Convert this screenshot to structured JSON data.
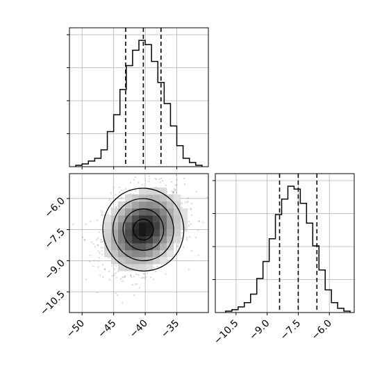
{
  "chart_data": [
    {
      "panel": "marginal-x",
      "type": "histogram",
      "xlim": [
        -52,
        -30
      ],
      "bin_edges": [
        -51,
        -50,
        -49,
        -48,
        -47,
        -46,
        -45,
        -44,
        -43,
        -42,
        -41,
        -40,
        -39,
        -38,
        -37,
        -36,
        -35,
        -34,
        -33,
        -32,
        -31
      ],
      "counts": [
        0.01,
        0.02,
        0.04,
        0.06,
        0.12,
        0.25,
        0.37,
        0.55,
        0.72,
        0.83,
        0.9,
        0.87,
        0.75,
        0.6,
        0.45,
        0.29,
        0.15,
        0.06,
        0.03,
        0.01
      ],
      "quantiles": [
        -43.1,
        -40.3,
        -37.5
      ],
      "x_ticks": [
        -50,
        -45,
        -40,
        -35
      ],
      "grid": true
    },
    {
      "panel": "joint",
      "type": "scatter-density",
      "xlim": [
        -52,
        -30
      ],
      "ylim": [
        -11.5,
        -4.8
      ],
      "center": [
        -40.3,
        -7.5
      ],
      "spread": [
        3.2,
        1.0
      ],
      "x_ticks": [
        -50,
        -45,
        -40,
        -35
      ],
      "x_tick_labels": [
        "−50",
        "−45",
        "−40",
        "−35"
      ],
      "y_ticks": [
        -6.0,
        -7.5,
        -9.0,
        -10.5
      ],
      "y_tick_labels": [
        "−6.0",
        "−7.5",
        "−9.0",
        "−10.5"
      ],
      "grid": true
    },
    {
      "panel": "marginal-y",
      "type": "histogram",
      "xlim": [
        -11.5,
        -4.8
      ],
      "bin_edges": [
        -11.0,
        -10.7,
        -10.4,
        -10.1,
        -9.8,
        -9.5,
        -9.2,
        -8.9,
        -8.6,
        -8.3,
        -8.0,
        -7.7,
        -7.4,
        -7.1,
        -6.8,
        -6.5,
        -6.2,
        -5.9,
        -5.6,
        -5.3,
        -5.0
      ],
      "counts": [
        0.01,
        0.02,
        0.04,
        0.07,
        0.13,
        0.24,
        0.36,
        0.52,
        0.69,
        0.8,
        0.89,
        0.87,
        0.77,
        0.63,
        0.47,
        0.3,
        0.16,
        0.07,
        0.03,
        0.01
      ],
      "quantiles": [
        -8.4,
        -7.5,
        -6.6
      ],
      "x_ticks": [
        -10.5,
        -9.0,
        -7.5,
        -6.0
      ],
      "x_tick_labels": [
        "−10.5",
        "−9.0",
        "−7.5",
        "−6.0"
      ],
      "grid": true
    }
  ]
}
